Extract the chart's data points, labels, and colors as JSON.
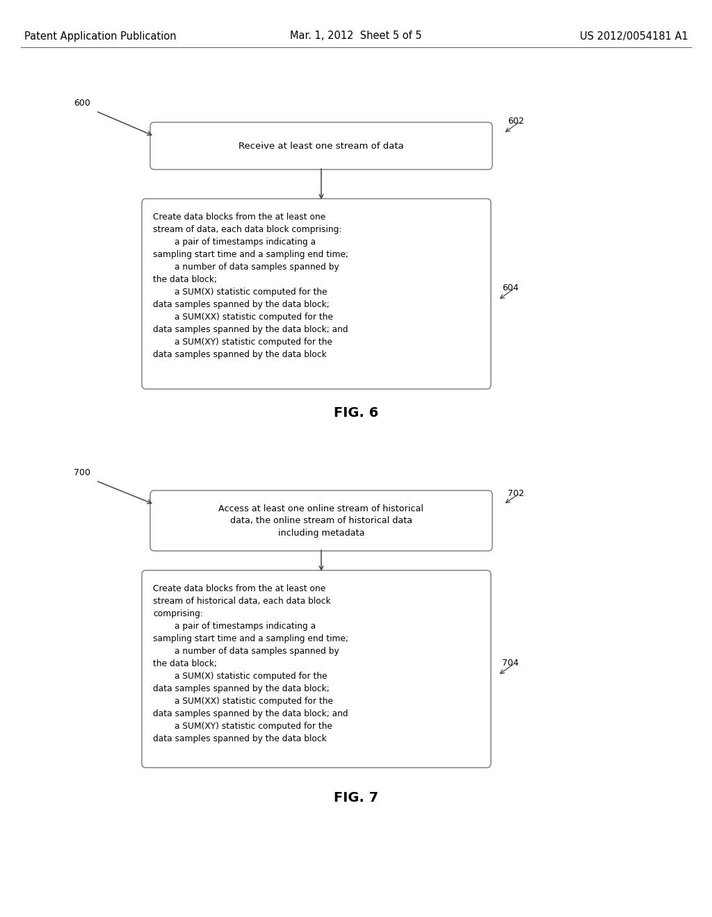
{
  "background_color": "#ffffff",
  "header_left": "Patent Application Publication",
  "header_center": "Mar. 1, 2012  Sheet 5 of 5",
  "header_right": "US 2012/0054181 A1",
  "header_fontsize": 10.5,
  "fig6": {
    "label": "600",
    "box1_label": "602",
    "box1_text": "Receive at least one stream of data",
    "box2_label": "604",
    "box2_text": "Create data blocks from the at least one\nstream of data, each data block comprising:\n        a pair of timestamps indicating a\nsampling start time and a sampling end time;\n        a number of data samples spanned by\nthe data block;\n        a SUM(X) statistic computed for the\ndata samples spanned by the data block;\n        a SUM(XX) statistic computed for the\ndata samples spanned by the data block; and\n        a SUM(XY) statistic computed for the\ndata samples spanned by the data block",
    "fig_label": "FIG. 6"
  },
  "fig7": {
    "label": "700",
    "box1_label": "702",
    "box1_text": "Access at least one online stream of historical\ndata, the online stream of historical data\nincluding metadata",
    "box2_label": "704",
    "box2_text": "Create data blocks from the at least one\nstream of historical data, each data block\ncomprising:\n        a pair of timestamps indicating a\nsampling start time and a sampling end time;\n        a number of data samples spanned by\nthe data block;\n        a SUM(X) statistic computed for the\ndata samples spanned by the data block;\n        a SUM(XX) statistic computed for the\ndata samples spanned by the data block; and\n        a SUM(XY) statistic computed for the\ndata samples spanned by the data block",
    "fig_label": "FIG. 7"
  }
}
